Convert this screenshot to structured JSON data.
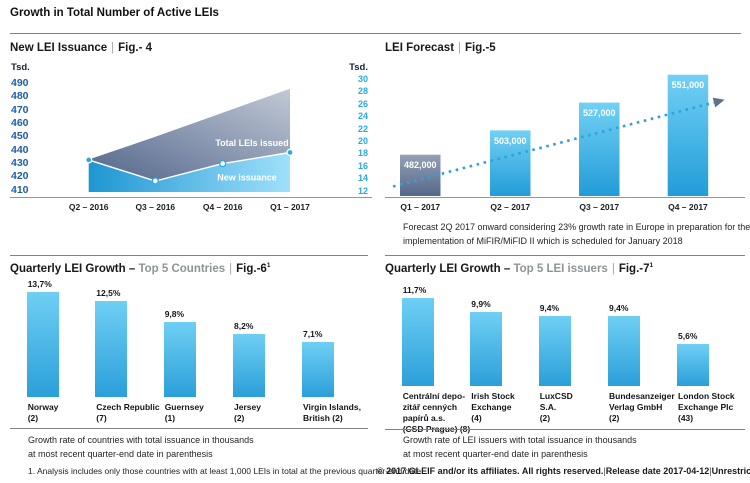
{
  "header": {
    "title": "Growth in Total Number of Active LEIs"
  },
  "misc": {
    "pipe": "|"
  },
  "colors": {
    "accent_blue": "#29abe2",
    "dark_navy": "#14223c",
    "slate": "#5e7191",
    "bar_gradient_top": "#6fcff4",
    "bar_gradient_bottom": "#2b9fd9",
    "divider_gray": "#828282"
  },
  "chart_data": [
    {
      "id": "fig4",
      "type": "area",
      "title": "New LEI Issuance",
      "fig_label": "Fig.- 4",
      "categories": [
        "Q2 – 2016",
        "Q3 – 2016",
        "Q4 – 2016",
        "Q1 – 2017"
      ],
      "series": [
        {
          "name": "Total LEIs issued",
          "axis": "left",
          "values": [
            434,
            451,
            469,
            487
          ]
        },
        {
          "name": "New issuance",
          "axis": "right",
          "values": [
            17,
            13.6,
            16.4,
            18.2
          ]
        }
      ],
      "left_axis": {
        "label": "Tsd.",
        "ticks": [
          490,
          480,
          470,
          460,
          450,
          440,
          430,
          420,
          410
        ],
        "min": 410,
        "max": 490
      },
      "right_axis": {
        "label": "Tsd.",
        "ticks": [
          30,
          28,
          26,
          24,
          22,
          20,
          18,
          16,
          14,
          12
        ],
        "min": 12,
        "max": 30
      },
      "legend_position": "inside"
    },
    {
      "id": "fig5",
      "type": "bar",
      "title": "LEI Forecast",
      "fig_label": "Fig.-5",
      "categories": [
        "Q1 – 2017",
        "Q2 – 2017",
        "Q3 – 2017",
        "Q4 – 2017"
      ],
      "values": [
        482000,
        503000,
        527000,
        551000
      ],
      "value_labels": [
        "482,000",
        "503,000",
        "527,000",
        "551,000"
      ],
      "trend_line": "dotted ascending arrow",
      "caption": "Forecast 2Q 2017 onward considering 23% growth rate in Europe in preparation for the implementation of MiFIR/MiFID II which is scheduled for January 2018"
    },
    {
      "id": "fig6",
      "type": "bar",
      "title_black": "Quarterly LEI Growth –",
      "title_gray": "Top 5 Countries",
      "fig_label": "Fig.-6",
      "fig_sup": "1",
      "categories": [
        "Norway\n(2)",
        "Czech Republic\n(7)",
        "Guernsey\n(1)",
        "Jersey\n(2)",
        "Virgin Islands,\nBritish (2)"
      ],
      "values": [
        13.7,
        12.5,
        9.8,
        8.2,
        7.1
      ],
      "value_labels": [
        "13,7%",
        "12,5%",
        "9,8%",
        "8,2%",
        "7,1%"
      ],
      "caption": "Growth rate of countries with total issuance in thousands\nat most recent quarter-end date in parenthesis",
      "footnote": "1. Analysis includes only those countries with at least 1,000 LEIs in total at the previous quarter-end date"
    },
    {
      "id": "fig7",
      "type": "bar",
      "title_black": "Quarterly LEI Growth –",
      "title_gray": "Top 5 LEI issuers",
      "fig_label": "Fig.-7",
      "fig_sup": "1",
      "categories": [
        "Centrální depo-\nzitář cenných\npapírů a.s.\n(CSD Prague) (8)",
        "Irish Stock\nExchange\n(4)",
        "LuxCSD\nS.A.\n(2)",
        "Bundesanzeiger\nVerlag GmbH\n(2)",
        "London Stock\nExchange Plc\n(43)"
      ],
      "values": [
        11.7,
        9.9,
        9.4,
        9.4,
        5.6
      ],
      "value_labels": [
        "11,7%",
        "9,9%",
        "9,4%",
        "9,4%",
        "5,6%"
      ],
      "caption": "Growth rate of LEI issuers with total issuance in thousands\nat most recent quarter-end date in parenthesis"
    }
  ],
  "footer": {
    "copyright": "© 2017 GLEIF and/or its affiliates. All rights reserved.",
    "release": "Release date 2017-04-12",
    "classification": "Unrestricted"
  }
}
